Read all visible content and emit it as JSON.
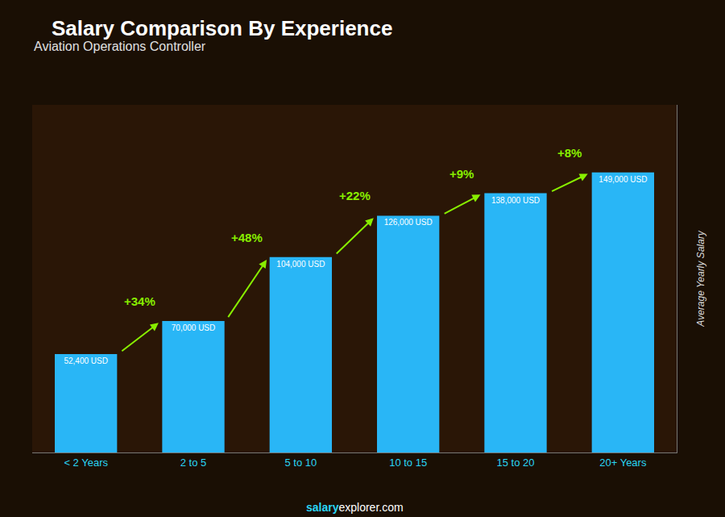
{
  "chart_data": {
    "type": "bar",
    "title": "Salary Comparison By Experience",
    "subtitle": "Aviation Operations Controller",
    "categories": [
      "< 2 Years",
      "2 to 5",
      "5 to 10",
      "10 to 15",
      "15 to 20",
      "20+ Years"
    ],
    "values": [
      52400,
      70000,
      104000,
      126000,
      138000,
      149000
    ],
    "value_labels": [
      "52,400 USD",
      "70,000 USD",
      "104,000 USD",
      "126,000 USD",
      "138,000 USD",
      "149,000 USD"
    ],
    "data_labels": true,
    "color": "#29b6f6",
    "ylabel": "Average Yearly Salary",
    "annotations": [
      "+34%",
      "+48%",
      "+22%",
      "+9%",
      "+8%"
    ],
    "watermark": [
      "salary",
      "explorer.com"
    ],
    "ylim": [
      0,
      185000
    ],
    "tick_labels": "x",
    "grid": false
  }
}
